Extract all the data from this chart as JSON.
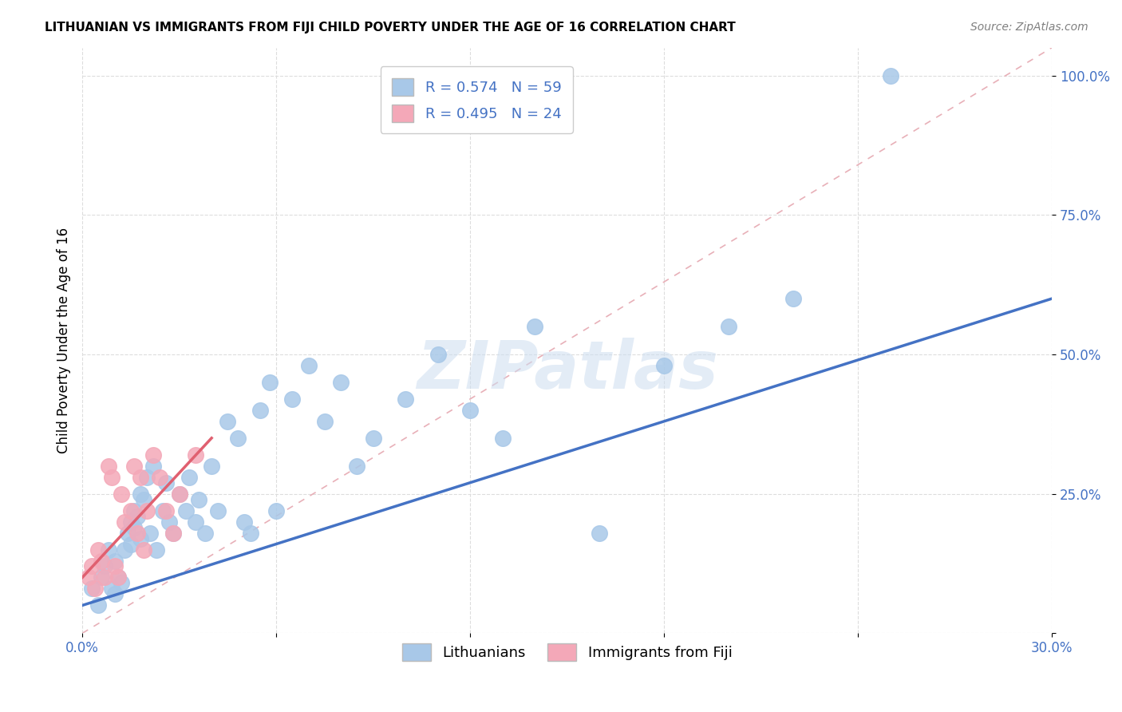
{
  "title": "LITHUANIAN VS IMMIGRANTS FROM FIJI CHILD POVERTY UNDER THE AGE OF 16 CORRELATION CHART",
  "source": "Source: ZipAtlas.com",
  "ylabel": "Child Poverty Under the Age of 16",
  "xlim": [
    0.0,
    0.3
  ],
  "ylim": [
    0.0,
    1.05
  ],
  "xtick_positions": [
    0.0,
    0.06,
    0.12,
    0.18,
    0.24,
    0.3
  ],
  "xtick_labels": [
    "0.0%",
    "",
    "",
    "",
    "",
    "30.0%"
  ],
  "ytick_positions": [
    0.0,
    0.25,
    0.5,
    0.75,
    1.0
  ],
  "ytick_labels": [
    "",
    "25.0%",
    "50.0%",
    "75.0%",
    "100.0%"
  ],
  "legend1_label": "R = 0.574   N = 59",
  "legend2_label": "R = 0.495   N = 24",
  "legend1_color": "#a8c8e8",
  "legend2_color": "#f4a8b8",
  "blue_scatter_color": "#a8c8e8",
  "pink_scatter_color": "#f4a8b8",
  "blue_line_color": "#4472C4",
  "pink_line_color": "#E06070",
  "diagonal_line_color": "#e8b0b8",
  "watermark": "ZIPatlas",
  "background_color": "#ffffff",
  "grid_color": "#dddddd",
  "title_fontsize": 11,
  "axis_tick_color": "#4472C4",
  "blue_scatter_x": [
    0.003,
    0.005,
    0.006,
    0.007,
    0.008,
    0.009,
    0.01,
    0.01,
    0.011,
    0.012,
    0.013,
    0.014,
    0.015,
    0.015,
    0.016,
    0.016,
    0.017,
    0.018,
    0.018,
    0.019,
    0.02,
    0.021,
    0.022,
    0.023,
    0.025,
    0.026,
    0.027,
    0.028,
    0.03,
    0.032,
    0.033,
    0.035,
    0.036,
    0.038,
    0.04,
    0.042,
    0.045,
    0.048,
    0.05,
    0.052,
    0.055,
    0.058,
    0.06,
    0.065,
    0.07,
    0.075,
    0.08,
    0.085,
    0.09,
    0.1,
    0.11,
    0.12,
    0.13,
    0.14,
    0.16,
    0.18,
    0.2,
    0.22,
    0.25
  ],
  "blue_scatter_y": [
    0.08,
    0.05,
    0.1,
    0.12,
    0.15,
    0.08,
    0.07,
    0.13,
    0.1,
    0.09,
    0.15,
    0.18,
    0.2,
    0.16,
    0.22,
    0.19,
    0.21,
    0.25,
    0.17,
    0.24,
    0.28,
    0.18,
    0.3,
    0.15,
    0.22,
    0.27,
    0.2,
    0.18,
    0.25,
    0.22,
    0.28,
    0.2,
    0.24,
    0.18,
    0.3,
    0.22,
    0.38,
    0.35,
    0.2,
    0.18,
    0.4,
    0.45,
    0.22,
    0.42,
    0.48,
    0.38,
    0.45,
    0.3,
    0.35,
    0.42,
    0.5,
    0.4,
    0.35,
    0.55,
    0.18,
    0.48,
    0.55,
    0.6,
    1.0
  ],
  "pink_scatter_x": [
    0.002,
    0.003,
    0.004,
    0.005,
    0.006,
    0.007,
    0.008,
    0.009,
    0.01,
    0.011,
    0.012,
    0.013,
    0.015,
    0.016,
    0.017,
    0.018,
    0.019,
    0.02,
    0.022,
    0.024,
    0.026,
    0.028,
    0.03,
    0.035
  ],
  "pink_scatter_y": [
    0.1,
    0.12,
    0.08,
    0.15,
    0.13,
    0.1,
    0.3,
    0.28,
    0.12,
    0.1,
    0.25,
    0.2,
    0.22,
    0.3,
    0.18,
    0.28,
    0.15,
    0.22,
    0.32,
    0.28,
    0.22,
    0.18,
    0.25,
    0.32
  ],
  "blue_line_x": [
    0.0,
    0.3
  ],
  "blue_line_y": [
    0.05,
    0.6
  ],
  "pink_line_x": [
    0.0,
    0.04
  ],
  "pink_line_y": [
    0.1,
    0.35
  ],
  "legend_bottom_labels": [
    "Lithuanians",
    "Immigrants from Fiji"
  ]
}
